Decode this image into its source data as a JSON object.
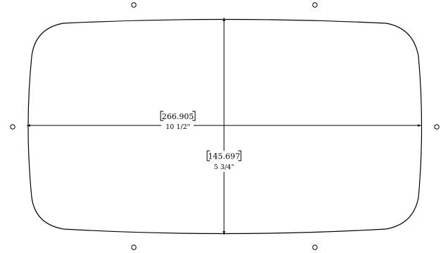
{
  "colors": {
    "line": "#000000",
    "background": "#ffffff"
  },
  "width_dimension": {
    "metric": "266.905",
    "imperial": "10 1/2\""
  },
  "height_dimension": {
    "metric": "145.697",
    "imperial": "5 3/4\""
  }
}
